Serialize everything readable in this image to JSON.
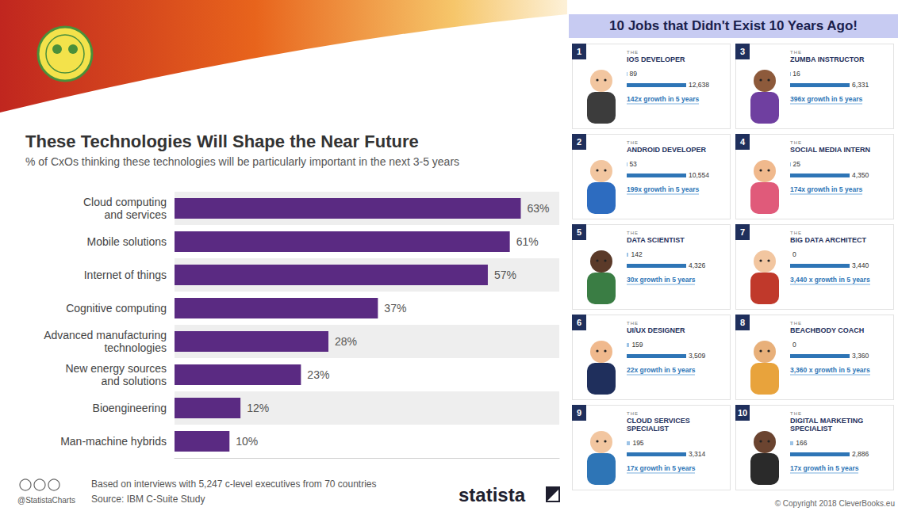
{
  "chart_data": {
    "type": "bar",
    "orientation": "horizontal",
    "title": "These Technologies Will Shape the Near Future",
    "subtitle": "% of CxOs thinking these technologies will be particularly important in the next 3-5 years",
    "categories": [
      "Cloud computing and services",
      "Mobile solutions",
      "Internet of things",
      "Cognitive computing",
      "Advanced manufacturing technologies",
      "New energy sources and solutions",
      "Bioengineering",
      "Man-machine hybrids"
    ],
    "values": [
      63,
      61,
      57,
      37,
      28,
      23,
      12,
      10
    ],
    "value_labels": [
      "63%",
      "61%",
      "57%",
      "37%",
      "28%",
      "23%",
      "12%",
      "10%"
    ],
    "color": "#5a2a82",
    "xlim": [
      0,
      70
    ],
    "xticks": [],
    "grid": false,
    "data_labels": true,
    "tick_labels": "y",
    "annotations": [
      "Based on interviews with 5,247 c-level executives from 70 countries",
      "Source: IBM C-Suite Study",
      "@StatistaCharts",
      "statista"
    ]
  },
  "infographic": {
    "title": "10 Jobs that Didn't Exist 10 Years Ago!",
    "item_prefix": "THE",
    "jobs": [
      {
        "rank": 1,
        "title": "IOS DEVELOPER",
        "counts": [
          89,
          12638
        ],
        "count_labels": [
          "89",
          "12,638"
        ],
        "growth": "142x growth in 5 years"
      },
      {
        "rank": 3,
        "title": "ZUMBA INSTRUCTOR",
        "counts": [
          16,
          6331
        ],
        "count_labels": [
          "16",
          "6,331"
        ],
        "growth": "396x growth in 5 years"
      },
      {
        "rank": 2,
        "title": "ANDROID DEVELOPER",
        "counts": [
          53,
          10554
        ],
        "count_labels": [
          "53",
          "10,554"
        ],
        "growth": "199x growth in 5 years"
      },
      {
        "rank": 4,
        "title": "SOCIAL MEDIA INTERN",
        "counts": [
          25,
          4350
        ],
        "count_labels": [
          "25",
          "4,350"
        ],
        "growth": "174x growth in 5 years"
      },
      {
        "rank": 5,
        "title": "DATA SCIENTIST",
        "counts": [
          142,
          4326
        ],
        "count_labels": [
          "142",
          "4,326"
        ],
        "growth": "30x growth in 5 years"
      },
      {
        "rank": 7,
        "title": "BIG DATA ARCHITECT",
        "counts": [
          0,
          3440
        ],
        "count_labels": [
          "0",
          "3,440"
        ],
        "growth": "3,440 x growth in 5 years"
      },
      {
        "rank": 6,
        "title": "UI/UX DESIGNER",
        "counts": [
          159,
          3509
        ],
        "count_labels": [
          "159",
          "3,509"
        ],
        "growth": "22x growth in 5 years"
      },
      {
        "rank": 8,
        "title": "BEACHBODY COACH",
        "counts": [
          0,
          3360
        ],
        "count_labels": [
          "0",
          "3,360"
        ],
        "growth": "3,360 x growth in 5 years"
      },
      {
        "rank": 9,
        "title": "CLOUD SERVICES SPECIALIST",
        "counts": [
          195,
          3314
        ],
        "count_labels": [
          "195",
          "3,314"
        ],
        "growth": "17x growth in 5 years"
      },
      {
        "rank": 10,
        "title": "DIGITAL MARKETING SPECIALIST",
        "counts": [
          166,
          2886
        ],
        "count_labels": [
          "166",
          "2,886"
        ],
        "growth": "17x growth in 5 years"
      }
    ],
    "copyright": "© Copyright 2018 CleverBooks.eu"
  }
}
